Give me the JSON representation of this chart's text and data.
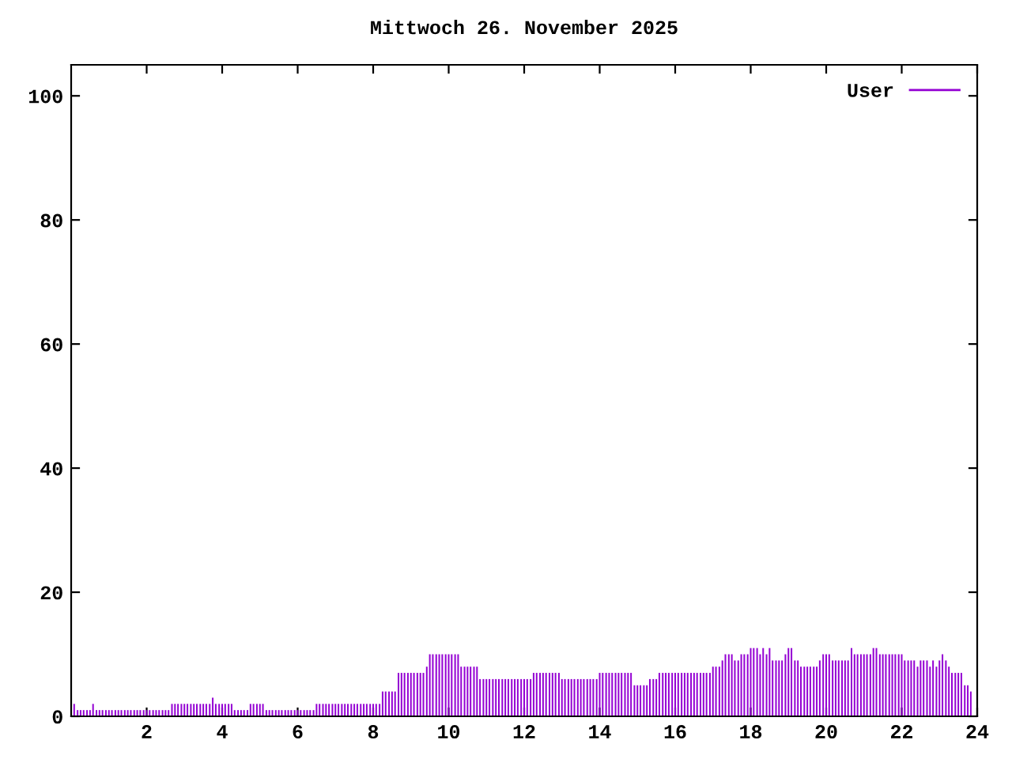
{
  "chart_data": {
    "type": "bar",
    "title": "Mittwoch 26. November 2025",
    "xlim": [
      0,
      24
    ],
    "xticks": [
      2,
      4,
      6,
      8,
      10,
      12,
      14,
      16,
      18,
      20,
      22,
      24
    ],
    "ylim": [
      0,
      105
    ],
    "yticks": [
      0,
      20,
      40,
      60,
      80,
      100
    ],
    "grid": false,
    "legend": "top right",
    "series": [
      {
        "name": "User",
        "color": "#9400d3",
        "x": [
          0.08,
          0.17,
          0.25,
          0.33,
          0.42,
          0.5,
          0.58,
          0.67,
          0.75,
          0.83,
          0.92,
          1,
          1.08,
          1.17,
          1.25,
          1.33,
          1.42,
          1.5,
          1.58,
          1.67,
          1.75,
          1.83,
          1.92,
          2,
          2.08,
          2.17,
          2.25,
          2.33,
          2.42,
          2.5,
          2.58,
          2.67,
          2.75,
          2.83,
          2.92,
          3,
          3.08,
          3.17,
          3.25,
          3.33,
          3.42,
          3.5,
          3.58,
          3.67,
          3.75,
          3.83,
          3.92,
          4,
          4.08,
          4.17,
          4.25,
          4.33,
          4.42,
          4.5,
          4.58,
          4.67,
          4.75,
          4.83,
          4.92,
          5,
          5.08,
          5.17,
          5.25,
          5.33,
          5.42,
          5.5,
          5.58,
          5.67,
          5.75,
          5.83,
          5.92,
          6,
          6.08,
          6.17,
          6.25,
          6.33,
          6.42,
          6.5,
          6.58,
          6.67,
          6.75,
          6.83,
          6.92,
          7,
          7.08,
          7.17,
          7.25,
          7.33,
          7.42,
          7.5,
          7.58,
          7.67,
          7.75,
          7.83,
          7.92,
          8,
          8.08,
          8.17,
          8.25,
          8.33,
          8.42,
          8.5,
          8.58,
          8.67,
          8.75,
          8.83,
          8.92,
          9,
          9.08,
          9.17,
          9.25,
          9.33,
          9.42,
          9.5,
          9.58,
          9.67,
          9.75,
          9.83,
          9.92,
          10,
          10.08,
          10.17,
          10.25,
          10.33,
          10.42,
          10.5,
          10.58,
          10.67,
          10.75,
          10.83,
          10.92,
          11,
          11.08,
          11.17,
          11.25,
          11.33,
          11.42,
          11.5,
          11.58,
          11.67,
          11.75,
          11.83,
          11.92,
          12,
          12.08,
          12.17,
          12.25,
          12.33,
          12.42,
          12.5,
          12.58,
          12.67,
          12.75,
          12.83,
          12.92,
          13,
          13.08,
          13.17,
          13.25,
          13.33,
          13.42,
          13.5,
          13.58,
          13.67,
          13.75,
          13.83,
          13.92,
          14,
          14.08,
          14.17,
          14.25,
          14.33,
          14.42,
          14.5,
          14.58,
          14.67,
          14.75,
          14.83,
          14.92,
          15,
          15.08,
          15.17,
          15.25,
          15.33,
          15.42,
          15.5,
          15.58,
          15.67,
          15.75,
          15.83,
          15.92,
          16,
          16.08,
          16.17,
          16.25,
          16.33,
          16.42,
          16.5,
          16.58,
          16.67,
          16.75,
          16.83,
          16.92,
          17,
          17.08,
          17.17,
          17.25,
          17.33,
          17.42,
          17.5,
          17.58,
          17.67,
          17.75,
          17.83,
          17.92,
          18,
          18.08,
          18.17,
          18.25,
          18.33,
          18.42,
          18.5,
          18.58,
          18.67,
          18.75,
          18.83,
          18.92,
          19,
          19.08,
          19.17,
          19.25,
          19.33,
          19.42,
          19.5,
          19.58,
          19.67,
          19.75,
          19.83,
          19.92,
          20,
          20.08,
          20.17,
          20.25,
          20.33,
          20.42,
          20.5,
          20.58,
          20.67,
          20.75,
          20.83,
          20.92,
          21,
          21.08,
          21.17,
          21.25,
          21.33,
          21.42,
          21.5,
          21.58,
          21.67,
          21.75,
          21.83,
          21.92,
          22,
          22.08,
          22.17,
          22.25,
          22.33,
          22.42,
          22.5,
          22.58,
          22.67,
          22.75,
          22.83,
          22.92,
          23,
          23.08,
          23.17,
          23.25,
          23.33,
          23.42,
          23.5,
          23.58,
          23.67,
          23.75,
          23.83
        ],
        "values": [
          2,
          1,
          1,
          1,
          1,
          1,
          2,
          1,
          1,
          1,
          1,
          1,
          1,
          1,
          1,
          1,
          1,
          1,
          1,
          1,
          1,
          1,
          1,
          1,
          1,
          1,
          1,
          1,
          1,
          1,
          1,
          2,
          2,
          2,
          2,
          2,
          2,
          2,
          2,
          2,
          2,
          2,
          2,
          2,
          3,
          2,
          2,
          2,
          2,
          2,
          2,
          1,
          1,
          1,
          1,
          1,
          2,
          2,
          2,
          2,
          2,
          1,
          1,
          1,
          1,
          1,
          1,
          1,
          1,
          1,
          1,
          1,
          1,
          1,
          1,
          1,
          1,
          2,
          2,
          2,
          2,
          2,
          2,
          2,
          2,
          2,
          2,
          2,
          2,
          2,
          2,
          2,
          2,
          2,
          2,
          2,
          2,
          2,
          4,
          4,
          4,
          4,
          4,
          7,
          7,
          7,
          7,
          7,
          7,
          7,
          7,
          7,
          8,
          10,
          10,
          10,
          10,
          10,
          10,
          10,
          10,
          10,
          10,
          8,
          8,
          8,
          8,
          8,
          8,
          6,
          6,
          6,
          6,
          6,
          6,
          6,
          6,
          6,
          6,
          6,
          6,
          6,
          6,
          6,
          6,
          6,
          7,
          7,
          7,
          7,
          7,
          7,
          7,
          7,
          7,
          6,
          6,
          6,
          6,
          6,
          6,
          6,
          6,
          6,
          6,
          6,
          6,
          7,
          7,
          7,
          7,
          7,
          7,
          7,
          7,
          7,
          7,
          7,
          5,
          5,
          5,
          5,
          5,
          6,
          6,
          6,
          7,
          7,
          7,
          7,
          7,
          7,
          7,
          7,
          7,
          7,
          7,
          7,
          7,
          7,
          7,
          7,
          7,
          8,
          8,
          8,
          9,
          10,
          10,
          10,
          9,
          9,
          10,
          10,
          10,
          11,
          11,
          11,
          10,
          11,
          10,
          11,
          9,
          9,
          9,
          9,
          10,
          11,
          11,
          9,
          9,
          8,
          8,
          8,
          8,
          8,
          8,
          9,
          10,
          10,
          10,
          9,
          9,
          9,
          9,
          9,
          9,
          11,
          10,
          10,
          10,
          10,
          10,
          10,
          11,
          11,
          10,
          10,
          10,
          10,
          10,
          10,
          10,
          10,
          9,
          9,
          9,
          9,
          8,
          9,
          9,
          9,
          8,
          9,
          8,
          9,
          10,
          9,
          8,
          7,
          7,
          7,
          7,
          5,
          5,
          4
        ]
      }
    ]
  }
}
